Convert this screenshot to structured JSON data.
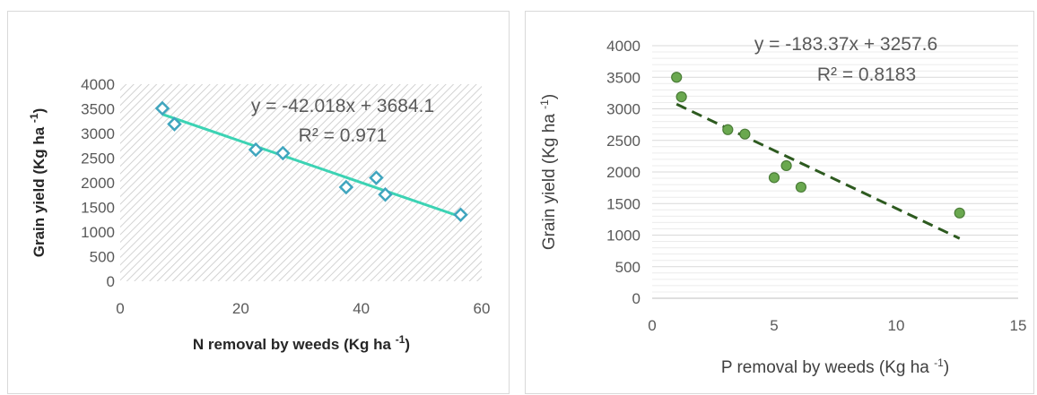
{
  "chart_data": [
    {
      "type": "scatter",
      "title": "",
      "xlabel": "N removal by weeds (Kg ha",
      "xlabel_sup": "-1",
      "xlabel_tail": ")",
      "ylabel": "Grain yield (Kg ha",
      "ylabel_sup": "-1",
      "ylabel_tail": ")",
      "xlim": [
        0,
        60
      ],
      "ylim": [
        0,
        4000
      ],
      "x_ticks": [
        "0",
        "20",
        "40",
        "60"
      ],
      "y_ticks": [
        "0",
        "500",
        "1000",
        "1500",
        "2000",
        "2500",
        "3000",
        "3500",
        "4000"
      ],
      "x": [
        7,
        9,
        22.5,
        27,
        37.5,
        42.5,
        44,
        56.5
      ],
      "y": [
        3510,
        3190,
        2670,
        2600,
        1910,
        2100,
        1760,
        1350
      ],
      "trendline": {
        "slope": -42.018,
        "intercept": 3684.1
      },
      "equation": "y = -42.018x + 3684.1",
      "r_squared": "R² = 0.971",
      "colors": {
        "marker": "#3fa5be",
        "trend": "#3cd3b4",
        "hatch": "#c8c8c8"
      }
    },
    {
      "type": "scatter",
      "title": "",
      "xlabel": "P removal by weeds (Kg ha",
      "xlabel_sup": "-1",
      "xlabel_tail": ")",
      "ylabel": "Grain yield (Kg ha",
      "ylabel_sup": "-1",
      "ylabel_tail": ")",
      "xlim": [
        0,
        15
      ],
      "ylim": [
        0,
        4000
      ],
      "x_ticks": [
        "0",
        "5",
        "10",
        "15"
      ],
      "y_ticks": [
        "0",
        "500",
        "1000",
        "1500",
        "2000",
        "2500",
        "3000",
        "3500",
        "4000"
      ],
      "x": [
        1,
        1.2,
        3.1,
        3.8,
        5,
        5.5,
        6.1,
        12.6
      ],
      "y": [
        3500,
        3190,
        2670,
        2600,
        1910,
        2100,
        1760,
        1350
      ],
      "trendline": {
        "slope": -183.37,
        "intercept": 3257.6
      },
      "equation": "y = -183.37x + 3257.6",
      "r_squared": "R² = 0.8183",
      "colors": {
        "marker": "#6aa84f",
        "marker_edge": "#4a7c37",
        "trend": "#2d5a1f",
        "grid": "#d9d9d9"
      }
    }
  ]
}
